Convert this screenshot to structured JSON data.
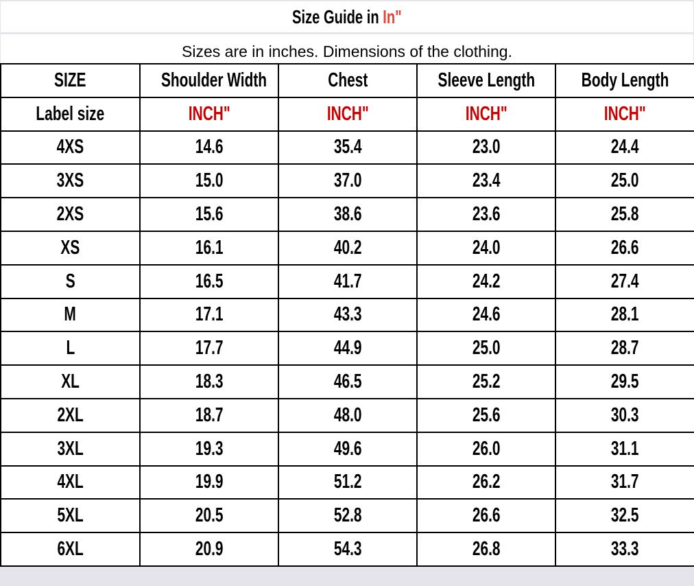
{
  "title": {
    "prefix": "Size Guide in ",
    "unit": "In\""
  },
  "subtitle": "Sizes are in inches. Dimensions of the clothing.",
  "colors": {
    "unit_red": "#c40000",
    "title_red": "#e0453a"
  },
  "headers": [
    "SIZE",
    "Shoulder Width",
    "Chest",
    "Sleeve Length",
    "Body Length"
  ],
  "units_row": [
    "Label size",
    "INCH\"",
    "INCH\"",
    "INCH\"",
    "INCH\""
  ],
  "rows": [
    [
      "4XS",
      "14.6",
      "35.4",
      "23.0",
      "24.4"
    ],
    [
      "3XS",
      "15.0",
      "37.0",
      "23.4",
      "25.0"
    ],
    [
      "2XS",
      "15.6",
      "38.6",
      "23.6",
      "25.8"
    ],
    [
      "XS",
      "16.1",
      "40.2",
      "24.0",
      "26.6"
    ],
    [
      "S",
      "16.5",
      "41.7",
      "24.2",
      "27.4"
    ],
    [
      "M",
      "17.1",
      "43.3",
      "24.6",
      "28.1"
    ],
    [
      "L",
      "17.7",
      "44.9",
      "25.0",
      "28.7"
    ],
    [
      "XL",
      "18.3",
      "46.5",
      "25.2",
      "29.5"
    ],
    [
      "2XL",
      "18.7",
      "48.0",
      "25.6",
      "30.3"
    ],
    [
      "3XL",
      "19.3",
      "49.6",
      "26.0",
      "31.1"
    ],
    [
      "4XL",
      "19.9",
      "51.2",
      "26.2",
      "31.7"
    ],
    [
      "5XL",
      "20.5",
      "52.8",
      "26.6",
      "32.5"
    ],
    [
      "6XL",
      "20.9",
      "54.3",
      "26.8",
      "33.3"
    ]
  ]
}
